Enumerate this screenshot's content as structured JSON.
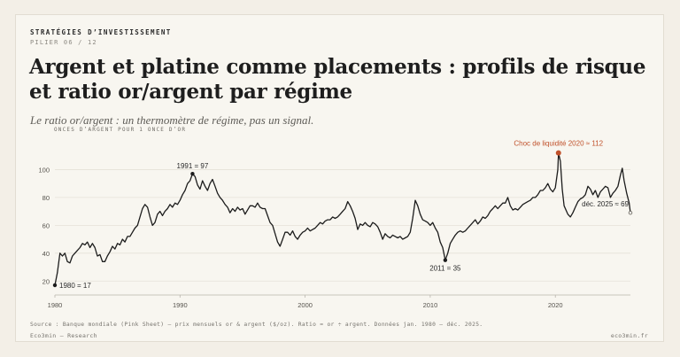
{
  "header": {
    "kicker": "STRATÉGIES D’INVESTISSEMENT",
    "pillar": "PILIER 06 / 12",
    "title": "Argent et platine comme placements : profils de risque et ratio or/argent par régime",
    "subtitle": "Le ratio or/argent : un thermomètre de régime, pas un signal."
  },
  "footer": {
    "source": "Source : Banque mondiale (Pink Sheet) — prix mensuels or & argent ($/oz). Ratio = or ÷ argent. Données jan. 1980 – déc. 2025.",
    "brand": "Eco3min — Research",
    "site": "eco3min.fr"
  },
  "colors": {
    "line": "#1c1c1c",
    "accent": "#c0512b",
    "grid": "#e5e1d8",
    "axis": "#b9b5ad"
  },
  "chart_data": {
    "type": "line",
    "title": "",
    "ylabel": "ONCES D’ARGENT POUR 1 ONCE D’OR",
    "xlabel": "",
    "xlim": [
      1980,
      2026
    ],
    "ylim": [
      10,
      120
    ],
    "x_ticks": [
      1980,
      1990,
      2000,
      2010,
      2020
    ],
    "y_ticks": [
      20,
      40,
      60,
      80,
      100
    ],
    "grid": true,
    "series": [
      {
        "points": [
          [
            1980.0,
            17
          ],
          [
            1980.2,
            26
          ],
          [
            1980.4,
            40
          ],
          [
            1980.6,
            38
          ],
          [
            1980.8,
            40
          ],
          [
            1981.0,
            34
          ],
          [
            1981.2,
            33
          ],
          [
            1981.4,
            38
          ],
          [
            1981.6,
            40
          ],
          [
            1981.8,
            42
          ],
          [
            1982.0,
            44
          ],
          [
            1982.2,
            47
          ],
          [
            1982.4,
            46
          ],
          [
            1982.6,
            48
          ],
          [
            1982.8,
            44
          ],
          [
            1983.0,
            47
          ],
          [
            1983.2,
            44
          ],
          [
            1983.4,
            38
          ],
          [
            1983.6,
            39
          ],
          [
            1983.8,
            34
          ],
          [
            1984.0,
            34
          ],
          [
            1984.2,
            38
          ],
          [
            1984.4,
            41
          ],
          [
            1984.6,
            45
          ],
          [
            1984.8,
            43
          ],
          [
            1985.0,
            47
          ],
          [
            1985.2,
            46
          ],
          [
            1985.4,
            50
          ],
          [
            1985.6,
            48
          ],
          [
            1985.8,
            52
          ],
          [
            1986.0,
            52
          ],
          [
            1986.2,
            55
          ],
          [
            1986.4,
            58
          ],
          [
            1986.6,
            60
          ],
          [
            1986.8,
            66
          ],
          [
            1987.0,
            72
          ],
          [
            1987.2,
            75
          ],
          [
            1987.4,
            73
          ],
          [
            1987.6,
            66
          ],
          [
            1987.8,
            60
          ],
          [
            1988.0,
            62
          ],
          [
            1988.2,
            68
          ],
          [
            1988.4,
            70
          ],
          [
            1988.6,
            67
          ],
          [
            1988.8,
            70
          ],
          [
            1989.0,
            72
          ],
          [
            1989.2,
            75
          ],
          [
            1989.4,
            73
          ],
          [
            1989.6,
            76
          ],
          [
            1989.8,
            75
          ],
          [
            1990.0,
            78
          ],
          [
            1990.2,
            82
          ],
          [
            1990.4,
            85
          ],
          [
            1990.6,
            90
          ],
          [
            1990.8,
            92
          ],
          [
            1991.0,
            97
          ],
          [
            1991.2,
            95
          ],
          [
            1991.4,
            89
          ],
          [
            1991.6,
            86
          ],
          [
            1991.8,
            92
          ],
          [
            1992.0,
            88
          ],
          [
            1992.2,
            85
          ],
          [
            1992.4,
            90
          ],
          [
            1992.6,
            93
          ],
          [
            1992.8,
            88
          ],
          [
            1993.0,
            83
          ],
          [
            1993.2,
            80
          ],
          [
            1993.4,
            78
          ],
          [
            1993.6,
            75
          ],
          [
            1993.8,
            73
          ],
          [
            1994.0,
            69
          ],
          [
            1994.2,
            72
          ],
          [
            1994.4,
            70
          ],
          [
            1994.6,
            73
          ],
          [
            1994.8,
            71
          ],
          [
            1995.0,
            72
          ],
          [
            1995.2,
            68
          ],
          [
            1995.4,
            71
          ],
          [
            1995.6,
            74
          ],
          [
            1995.8,
            74
          ],
          [
            1996.0,
            73
          ],
          [
            1996.2,
            76
          ],
          [
            1996.4,
            73
          ],
          [
            1996.6,
            72
          ],
          [
            1996.8,
            72
          ],
          [
            1997.0,
            67
          ],
          [
            1997.2,
            62
          ],
          [
            1997.4,
            60
          ],
          [
            1997.6,
            54
          ],
          [
            1997.8,
            48
          ],
          [
            1998.0,
            45
          ],
          [
            1998.2,
            50
          ],
          [
            1998.4,
            55
          ],
          [
            1998.6,
            55
          ],
          [
            1998.8,
            53
          ],
          [
            1999.0,
            56
          ],
          [
            1999.2,
            52
          ],
          [
            1999.4,
            50
          ],
          [
            1999.6,
            53
          ],
          [
            1999.8,
            55
          ],
          [
            2000.0,
            56
          ],
          [
            2000.2,
            58
          ],
          [
            2000.4,
            56
          ],
          [
            2000.6,
            57
          ],
          [
            2000.8,
            58
          ],
          [
            2001.0,
            60
          ],
          [
            2001.2,
            62
          ],
          [
            2001.4,
            61
          ],
          [
            2001.6,
            63
          ],
          [
            2001.8,
            64
          ],
          [
            2002.0,
            64
          ],
          [
            2002.2,
            66
          ],
          [
            2002.4,
            65
          ],
          [
            2002.6,
            66
          ],
          [
            2002.8,
            68
          ],
          [
            2003.0,
            70
          ],
          [
            2003.2,
            72
          ],
          [
            2003.4,
            77
          ],
          [
            2003.6,
            74
          ],
          [
            2003.8,
            70
          ],
          [
            2004.0,
            65
          ],
          [
            2004.2,
            57
          ],
          [
            2004.4,
            61
          ],
          [
            2004.6,
            60
          ],
          [
            2004.8,
            62
          ],
          [
            2005.0,
            60
          ],
          [
            2005.2,
            59
          ],
          [
            2005.4,
            62
          ],
          [
            2005.6,
            61
          ],
          [
            2005.8,
            59
          ],
          [
            2006.0,
            55
          ],
          [
            2006.2,
            50
          ],
          [
            2006.4,
            54
          ],
          [
            2006.6,
            52
          ],
          [
            2006.8,
            51
          ],
          [
            2007.0,
            53
          ],
          [
            2007.2,
            52
          ],
          [
            2007.4,
            51
          ],
          [
            2007.6,
            52
          ],
          [
            2007.8,
            50
          ],
          [
            2008.0,
            51
          ],
          [
            2008.2,
            52
          ],
          [
            2008.4,
            55
          ],
          [
            2008.6,
            65
          ],
          [
            2008.8,
            78
          ],
          [
            2009.0,
            74
          ],
          [
            2009.2,
            68
          ],
          [
            2009.4,
            64
          ],
          [
            2009.6,
            63
          ],
          [
            2009.8,
            62
          ],
          [
            2010.0,
            60
          ],
          [
            2010.2,
            62
          ],
          [
            2010.4,
            58
          ],
          [
            2010.6,
            55
          ],
          [
            2010.8,
            48
          ],
          [
            2011.0,
            44
          ],
          [
            2011.2,
            35
          ],
          [
            2011.4,
            40
          ],
          [
            2011.6,
            47
          ],
          [
            2011.8,
            50
          ],
          [
            2012.0,
            53
          ],
          [
            2012.2,
            55
          ],
          [
            2012.4,
            56
          ],
          [
            2012.6,
            55
          ],
          [
            2012.8,
            56
          ],
          [
            2013.0,
            58
          ],
          [
            2013.2,
            60
          ],
          [
            2013.4,
            62
          ],
          [
            2013.6,
            64
          ],
          [
            2013.8,
            61
          ],
          [
            2014.0,
            63
          ],
          [
            2014.2,
            66
          ],
          [
            2014.4,
            65
          ],
          [
            2014.6,
            67
          ],
          [
            2014.8,
            70
          ],
          [
            2015.0,
            72
          ],
          [
            2015.2,
            74
          ],
          [
            2015.4,
            72
          ],
          [
            2015.6,
            74
          ],
          [
            2015.8,
            76
          ],
          [
            2016.0,
            76
          ],
          [
            2016.2,
            80
          ],
          [
            2016.4,
            74
          ],
          [
            2016.6,
            71
          ],
          [
            2016.8,
            72
          ],
          [
            2017.0,
            71
          ],
          [
            2017.2,
            73
          ],
          [
            2017.4,
            75
          ],
          [
            2017.6,
            76
          ],
          [
            2017.8,
            77
          ],
          [
            2018.0,
            78
          ],
          [
            2018.2,
            80
          ],
          [
            2018.4,
            80
          ],
          [
            2018.6,
            82
          ],
          [
            2018.8,
            85
          ],
          [
            2019.0,
            85
          ],
          [
            2019.2,
            87
          ],
          [
            2019.4,
            90
          ],
          [
            2019.6,
            86
          ],
          [
            2019.8,
            84
          ],
          [
            2020.0,
            87
          ],
          [
            2020.2,
            100
          ],
          [
            2020.25,
            112
          ],
          [
            2020.4,
            106
          ],
          [
            2020.55,
            86
          ],
          [
            2020.7,
            74
          ],
          [
            2020.9,
            70
          ],
          [
            2021.0,
            68
          ],
          [
            2021.2,
            66
          ],
          [
            2021.4,
            69
          ],
          [
            2021.6,
            73
          ],
          [
            2021.8,
            77
          ],
          [
            2022.0,
            79
          ],
          [
            2022.2,
            80
          ],
          [
            2022.4,
            82
          ],
          [
            2022.6,
            88
          ],
          [
            2022.8,
            86
          ],
          [
            2023.0,
            82
          ],
          [
            2023.2,
            85
          ],
          [
            2023.4,
            80
          ],
          [
            2023.6,
            84
          ],
          [
            2023.8,
            86
          ],
          [
            2024.0,
            88
          ],
          [
            2024.2,
            87
          ],
          [
            2024.4,
            80
          ],
          [
            2024.6,
            83
          ],
          [
            2024.8,
            85
          ],
          [
            2025.0,
            88
          ],
          [
            2025.2,
            96
          ],
          [
            2025.35,
            101
          ],
          [
            2025.5,
            92
          ],
          [
            2025.7,
            83
          ],
          [
            2025.9,
            76
          ],
          [
            2026.0,
            69
          ]
        ]
      }
    ],
    "annotations": [
      {
        "x": 1980.0,
        "y": 17,
        "text": "1980 = 17",
        "anchor": "right",
        "highlight": false
      },
      {
        "x": 1991.0,
        "y": 97,
        "text": "1991 = 97",
        "anchor": "above",
        "highlight": false
      },
      {
        "x": 2011.2,
        "y": 35,
        "text": "2011 = 35",
        "anchor": "below",
        "highlight": false
      },
      {
        "x": 2020.25,
        "y": 112,
        "text": "Choc de liquidité 2020 ≈ 112",
        "anchor": "above",
        "highlight": true
      },
      {
        "x": 2026.0,
        "y": 69,
        "text": "déc. 2025 ≈ 69",
        "anchor": "left",
        "highlight": false
      }
    ]
  }
}
